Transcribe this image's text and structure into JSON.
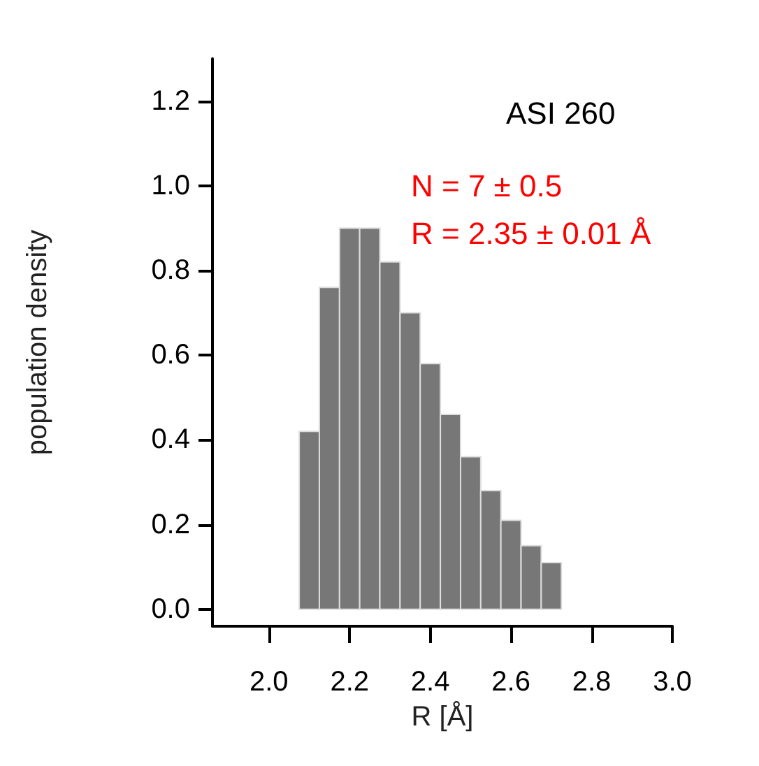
{
  "chart_data": {
    "type": "histogram",
    "xlabel": "R [Å]",
    "ylabel": "population density",
    "bins": [
      2.075,
      2.125,
      2.175,
      2.225,
      2.275,
      2.325,
      2.375,
      2.425,
      2.475,
      2.525,
      2.575,
      2.625,
      2.675,
      2.725
    ],
    "values": [
      0.42,
      0.76,
      0.9,
      0.9,
      0.82,
      0.7,
      0.58,
      0.46,
      0.36,
      0.28,
      0.21,
      0.15,
      0.11
    ],
    "color": "#777777",
    "xlim": [
      1.86,
      3.0
    ],
    "ylim": [
      -0.04,
      1.3
    ],
    "xticks": [
      {
        "value": 2,
        "label": "2.0"
      },
      {
        "value": 2.2,
        "label": "2.2"
      },
      {
        "value": 2.4,
        "label": "2.4"
      },
      {
        "value": 2.6,
        "label": "2.6"
      },
      {
        "value": 2.8,
        "label": "2.8"
      },
      {
        "value": 3,
        "label": "3.0"
      }
    ],
    "yticks": [
      {
        "value": 0,
        "label": "0.0"
      },
      {
        "value": 0.2,
        "label": "0.2"
      },
      {
        "value": 0.4,
        "label": "0.4"
      },
      {
        "value": 0.6,
        "label": "0.6"
      },
      {
        "value": 0.8,
        "label": "0.8"
      },
      {
        "value": 1,
        "label": "1.0"
      },
      {
        "value": 1.2,
        "label": "1.2"
      }
    ],
    "annotations": [
      "ASI 260",
      "N = 7 ± 0.5",
      "R = 2.35 ± 0.01 Å"
    ]
  }
}
